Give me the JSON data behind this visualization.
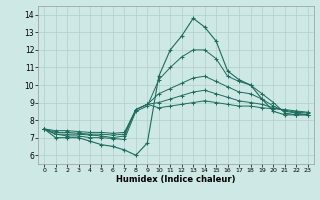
{
  "xlabel": "Humidex (Indice chaleur)",
  "background_color": "#cde8e5",
  "grid_color": "#afd0cc",
  "line_color": "#1d6b5a",
  "x_values": [
    0,
    1,
    2,
    3,
    4,
    5,
    6,
    7,
    8,
    9,
    10,
    11,
    12,
    13,
    14,
    15,
    16,
    17,
    18,
    19,
    20,
    21,
    22,
    23
  ],
  "main_line": [
    7.5,
    7.0,
    7.0,
    7.0,
    6.8,
    6.6,
    6.5,
    6.3,
    6.0,
    6.7,
    10.5,
    12.0,
    12.8,
    13.8,
    13.3,
    12.5,
    10.8,
    10.3,
    10.0,
    9.2,
    8.5,
    8.3,
    8.3,
    8.3
  ],
  "fan_lines": [
    [
      7.5,
      7.2,
      7.1,
      7.1,
      7.0,
      7.0,
      6.95,
      6.9,
      8.5,
      8.8,
      10.3,
      11.0,
      11.6,
      12.0,
      12.0,
      11.5,
      10.5,
      10.2,
      10.0,
      9.5,
      9.0,
      8.4,
      8.3,
      8.3
    ],
    [
      7.5,
      7.2,
      7.2,
      7.2,
      7.15,
      7.1,
      7.0,
      7.1,
      8.6,
      8.9,
      9.5,
      9.8,
      10.1,
      10.4,
      10.5,
      10.2,
      9.9,
      9.6,
      9.5,
      9.2,
      8.8,
      8.5,
      8.4,
      8.3
    ],
    [
      7.5,
      7.3,
      7.3,
      7.25,
      7.2,
      7.2,
      7.15,
      7.2,
      8.6,
      8.9,
      9.0,
      9.2,
      9.4,
      9.6,
      9.7,
      9.5,
      9.3,
      9.1,
      9.0,
      8.9,
      8.7,
      8.55,
      8.45,
      8.4
    ],
    [
      7.5,
      7.4,
      7.4,
      7.35,
      7.3,
      7.3,
      7.25,
      7.3,
      8.6,
      8.9,
      8.7,
      8.8,
      8.9,
      9.0,
      9.1,
      9.0,
      8.9,
      8.8,
      8.8,
      8.7,
      8.65,
      8.6,
      8.52,
      8.45
    ]
  ],
  "ylim": [
    5.5,
    14.5
  ],
  "yticks": [
    6,
    7,
    8,
    9,
    10,
    11,
    12,
    13,
    14
  ],
  "xlim": [
    -0.5,
    23.5
  ],
  "xticks": [
    0,
    1,
    2,
    3,
    4,
    5,
    6,
    7,
    8,
    9,
    10,
    11,
    12,
    13,
    14,
    15,
    16,
    17,
    18,
    19,
    20,
    21,
    22,
    23
  ]
}
